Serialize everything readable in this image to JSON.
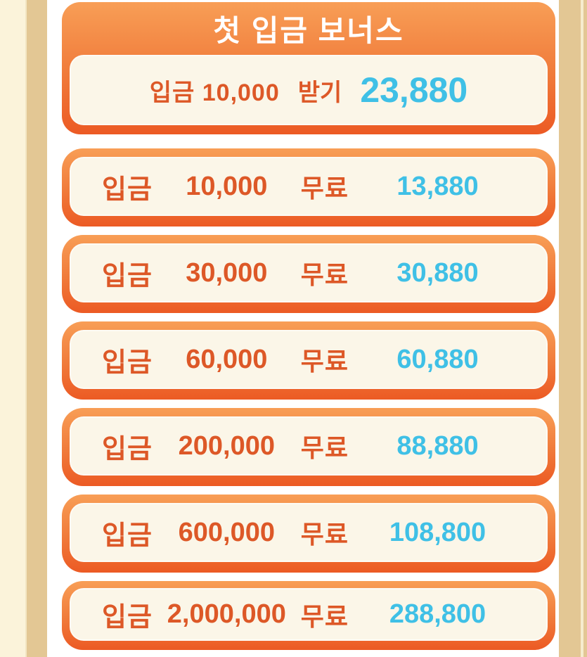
{
  "header_card": {
    "title": "첫 입금 보너스",
    "claim": {
      "deposit_text": "입금 10,000",
      "action_label": "받기",
      "bonus_value": "23,880"
    }
  },
  "tiers": {
    "deposit_label": "입금",
    "free_label": "무료",
    "rows": [
      {
        "deposit": "10,000",
        "bonus": "13,880"
      },
      {
        "deposit": "30,000",
        "bonus": "30,880"
      },
      {
        "deposit": "60,000",
        "bonus": "60,880"
      },
      {
        "deposit": "200,000",
        "bonus": "88,880"
      },
      {
        "deposit": "600,000",
        "bonus": "108,800"
      },
      {
        "deposit": "2,000,000",
        "bonus": "288,800"
      }
    ]
  },
  "colors": {
    "card_gradient_top": "#F89E56",
    "card_gradient_bottom": "#EC5A24",
    "panel_cream": "#FBF6E8",
    "deposit_text": "#DD5827",
    "bonus_text": "#3FC0E6",
    "header_title_text": "#FFFFFF",
    "edge_cream": "#FBF3DA",
    "edge_tan": "#E3C794"
  }
}
